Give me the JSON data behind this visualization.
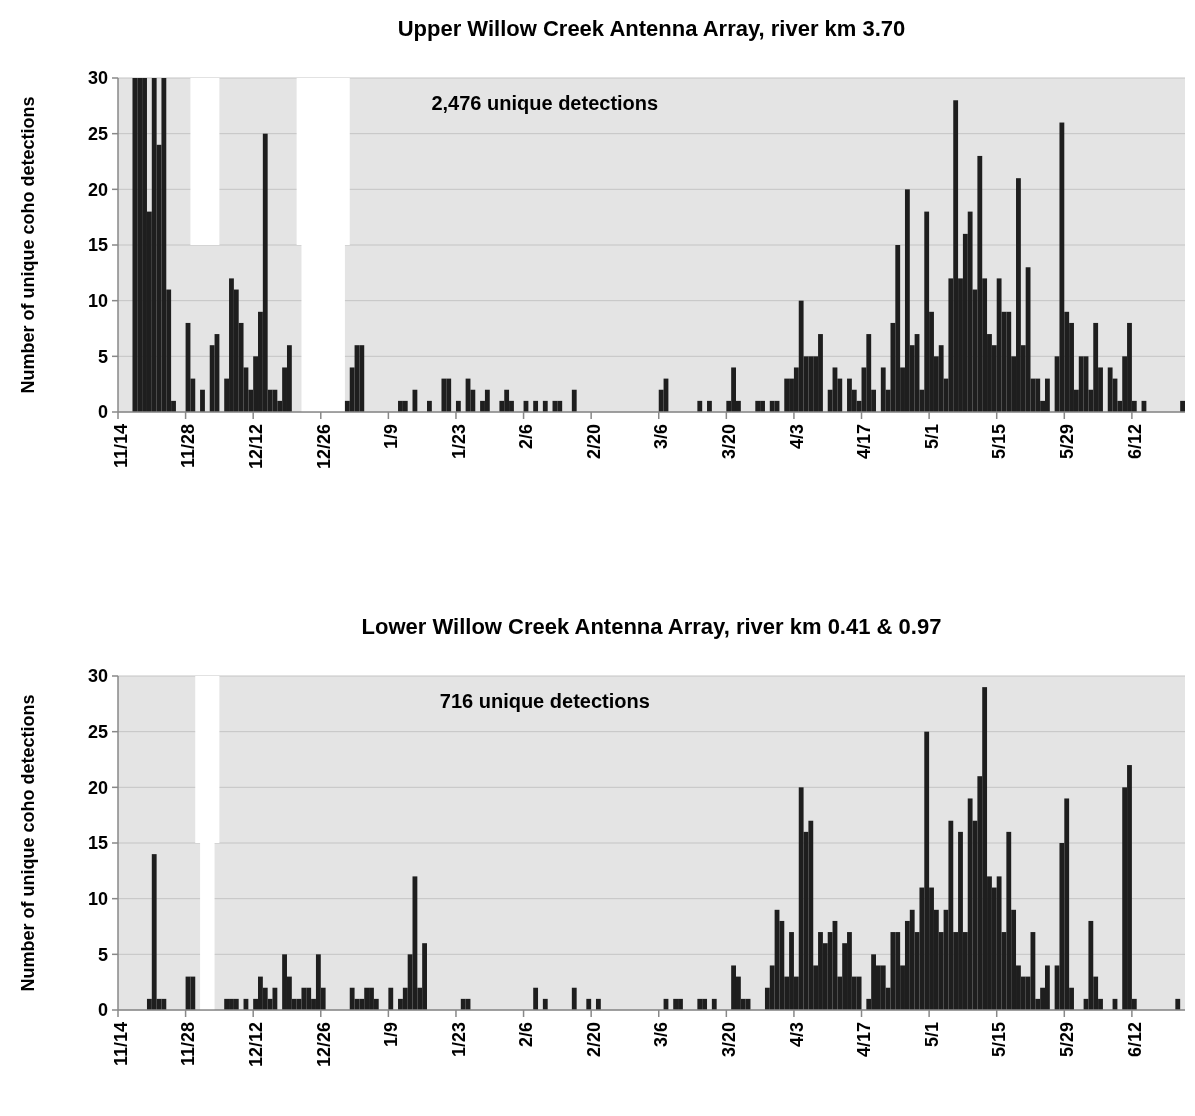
{
  "chart_data": [
    {
      "type": "bar",
      "title": "Upper Willow Creek Antenna Array, river km 3.70",
      "ylabel": "Number of unique coho detections",
      "annotations": [
        "2,476 unique detections"
      ],
      "color": "#1e1e1e",
      "grid": "y",
      "categories": [
        "11/14",
        null,
        null,
        null,
        null,
        null,
        null,
        null,
        null,
        null,
        null,
        null,
        null,
        null,
        "11/28",
        null,
        null,
        null,
        null,
        null,
        null,
        null,
        null,
        null,
        null,
        null,
        null,
        null,
        "12/12",
        null,
        null,
        null,
        null,
        null,
        null,
        null,
        null,
        null,
        null,
        null,
        null,
        null,
        "12/26",
        null,
        null,
        null,
        null,
        null,
        null,
        null,
        null,
        null,
        null,
        null,
        null,
        null,
        "1/9",
        null,
        null,
        null,
        null,
        null,
        null,
        null,
        null,
        null,
        null,
        null,
        null,
        null,
        "1/23",
        null,
        null,
        null,
        null,
        null,
        null,
        null,
        null,
        null,
        null,
        null,
        null,
        null,
        "2/6",
        null,
        null,
        null,
        null,
        null,
        null,
        null,
        null,
        null,
        null,
        null,
        null,
        null,
        "2/20",
        null,
        null,
        null,
        null,
        null,
        null,
        null,
        null,
        null,
        null,
        null,
        null,
        null,
        "3/6",
        null,
        null,
        null,
        null,
        null,
        null,
        null,
        null,
        null,
        null,
        null,
        null,
        null,
        "3/20",
        null,
        null,
        null,
        null,
        null,
        null,
        null,
        null,
        null,
        null,
        null,
        null,
        null,
        "4/3",
        null,
        null,
        null,
        null,
        null,
        null,
        null,
        null,
        null,
        null,
        null,
        null,
        null,
        "4/17",
        null,
        null,
        null,
        null,
        null,
        null,
        null,
        null,
        null,
        null,
        null,
        null,
        null,
        "5/1",
        null,
        null,
        null,
        null,
        null,
        null,
        null,
        null,
        null,
        null,
        null,
        null,
        null,
        "5/15",
        null,
        null,
        null,
        null,
        null,
        null,
        null,
        null,
        null,
        null,
        null,
        null,
        null,
        "5/29",
        null,
        null,
        null,
        null,
        null,
        null,
        null,
        null,
        null,
        null,
        null,
        null,
        null,
        "6/12",
        null,
        null,
        null,
        null,
        null,
        null,
        null,
        null,
        null,
        null
      ],
      "values": [
        0,
        0,
        0,
        30,
        30,
        30,
        18,
        30,
        24,
        30,
        11,
        1,
        0,
        0,
        8,
        3,
        0,
        2,
        0,
        6,
        7,
        0,
        3,
        12,
        11,
        8,
        4,
        2,
        5,
        9,
        25,
        2,
        2,
        1,
        4,
        6,
        0,
        0,
        0,
        0,
        0,
        0,
        0,
        0,
        0,
        0,
        0,
        1,
        4,
        6,
        6,
        0,
        0,
        0,
        0,
        0,
        0,
        0,
        1,
        1,
        0,
        2,
        0,
        0,
        1,
        0,
        0,
        3,
        3,
        0,
        1,
        0,
        3,
        2,
        0,
        1,
        2,
        0,
        0,
        1,
        2,
        1,
        0,
        0,
        1,
        0,
        1,
        0,
        1,
        0,
        1,
        1,
        0,
        0,
        2,
        0,
        0,
        0,
        0,
        0,
        0,
        0,
        0,
        0,
        0,
        0,
        0,
        0,
        0,
        0,
        0,
        0,
        2,
        3,
        0,
        0,
        0,
        0,
        0,
        0,
        1,
        0,
        1,
        0,
        0,
        0,
        1,
        4,
        1,
        0,
        0,
        0,
        1,
        1,
        0,
        1,
        1,
        0,
        3,
        3,
        4,
        10,
        5,
        5,
        5,
        7,
        0,
        2,
        4,
        3,
        0,
        3,
        2,
        1,
        4,
        7,
        2,
        0,
        4,
        2,
        8,
        15,
        4,
        20,
        6,
        7,
        2,
        18,
        9,
        5,
        6,
        3,
        12,
        28,
        12,
        16,
        18,
        11,
        23,
        12,
        7,
        6,
        12,
        9,
        9,
        5,
        21,
        6,
        13,
        3,
        3,
        1,
        3,
        0,
        5,
        26,
        9,
        8,
        2,
        5,
        5,
        2,
        8,
        4,
        0,
        4,
        3,
        1,
        5,
        8,
        1,
        0,
        1,
        0,
        0,
        0,
        0,
        0,
        0,
        0,
        1
      ],
      "ylim": [
        0,
        30
      ],
      "yticks": [
        0,
        5,
        10,
        15,
        20,
        25,
        30
      ]
    },
    {
      "type": "bar",
      "title": "Lower Willow Creek Antenna Array, river km 0.41 & 0.97",
      "ylabel": "Number of unique coho detections",
      "annotations": [
        "716 unique detections"
      ],
      "color": "#1e1e1e",
      "grid": "y",
      "categories": [
        "11/14",
        null,
        null,
        null,
        null,
        null,
        null,
        null,
        null,
        null,
        null,
        null,
        null,
        null,
        "11/28",
        null,
        null,
        null,
        null,
        null,
        null,
        null,
        null,
        null,
        null,
        null,
        null,
        null,
        "12/12",
        null,
        null,
        null,
        null,
        null,
        null,
        null,
        null,
        null,
        null,
        null,
        null,
        null,
        "12/26",
        null,
        null,
        null,
        null,
        null,
        null,
        null,
        null,
        null,
        null,
        null,
        null,
        null,
        "1/9",
        null,
        null,
        null,
        null,
        null,
        null,
        null,
        null,
        null,
        null,
        null,
        null,
        null,
        "1/23",
        null,
        null,
        null,
        null,
        null,
        null,
        null,
        null,
        null,
        null,
        null,
        null,
        null,
        "2/6",
        null,
        null,
        null,
        null,
        null,
        null,
        null,
        null,
        null,
        null,
        null,
        null,
        null,
        "2/20",
        null,
        null,
        null,
        null,
        null,
        null,
        null,
        null,
        null,
        null,
        null,
        null,
        null,
        "3/6",
        null,
        null,
        null,
        null,
        null,
        null,
        null,
        null,
        null,
        null,
        null,
        null,
        null,
        "3/20",
        null,
        null,
        null,
        null,
        null,
        null,
        null,
        null,
        null,
        null,
        null,
        null,
        null,
        "4/3",
        null,
        null,
        null,
        null,
        null,
        null,
        null,
        null,
        null,
        null,
        null,
        null,
        null,
        "4/17",
        null,
        null,
        null,
        null,
        null,
        null,
        null,
        null,
        null,
        null,
        null,
        null,
        null,
        "5/1",
        null,
        null,
        null,
        null,
        null,
        null,
        null,
        null,
        null,
        null,
        null,
        null,
        null,
        "5/15",
        null,
        null,
        null,
        null,
        null,
        null,
        null,
        null,
        null,
        null,
        null,
        null,
        null,
        "5/29",
        null,
        null,
        null,
        null,
        null,
        null,
        null,
        null,
        null,
        null,
        null,
        null,
        null,
        "6/12",
        null,
        null,
        null,
        null,
        null,
        null,
        null,
        null,
        null,
        null
      ],
      "values": [
        0,
        0,
        0,
        0,
        0,
        0,
        1,
        14,
        1,
        1,
        0,
        0,
        0,
        0,
        3,
        3,
        0,
        0,
        0,
        0,
        0,
        0,
        1,
        1,
        1,
        0,
        1,
        0,
        1,
        3,
        2,
        1,
        2,
        0,
        5,
        3,
        1,
        1,
        2,
        2,
        1,
        5,
        2,
        0,
        0,
        0,
        0,
        0,
        2,
        1,
        1,
        2,
        2,
        1,
        0,
        0,
        2,
        0,
        1,
        2,
        5,
        12,
        2,
        6,
        0,
        0,
        0,
        0,
        0,
        0,
        0,
        1,
        1,
        0,
        0,
        0,
        0,
        0,
        0,
        0,
        0,
        0,
        0,
        0,
        0,
        0,
        2,
        0,
        1,
        0,
        0,
        0,
        0,
        0,
        2,
        0,
        0,
        1,
        0,
        1,
        0,
        0,
        0,
        0,
        0,
        0,
        0,
        0,
        0,
        0,
        0,
        0,
        0,
        1,
        0,
        1,
        1,
        0,
        0,
        0,
        1,
        1,
        0,
        1,
        0,
        0,
        0,
        4,
        3,
        1,
        1,
        0,
        0,
        0,
        2,
        4,
        9,
        8,
        3,
        7,
        3,
        20,
        16,
        17,
        4,
        7,
        6,
        7,
        8,
        3,
        6,
        7,
        3,
        3,
        0,
        1,
        5,
        4,
        4,
        2,
        7,
        7,
        4,
        8,
        9,
        7,
        11,
        25,
        11,
        9,
        7,
        9,
        17,
        7,
        16,
        7,
        19,
        17,
        21,
        29,
        12,
        11,
        12,
        7,
        16,
        9,
        4,
        3,
        3,
        7,
        1,
        2,
        4,
        0,
        4,
        15,
        19,
        2,
        0,
        0,
        1,
        8,
        3,
        1,
        0,
        0,
        1,
        0,
        20,
        22,
        1,
        0,
        0,
        0,
        0,
        0,
        0,
        0,
        0,
        1,
        0
      ],
      "ylim": [
        0,
        30
      ],
      "yticks": [
        0,
        5,
        10,
        15,
        20,
        25,
        30
      ]
    }
  ]
}
